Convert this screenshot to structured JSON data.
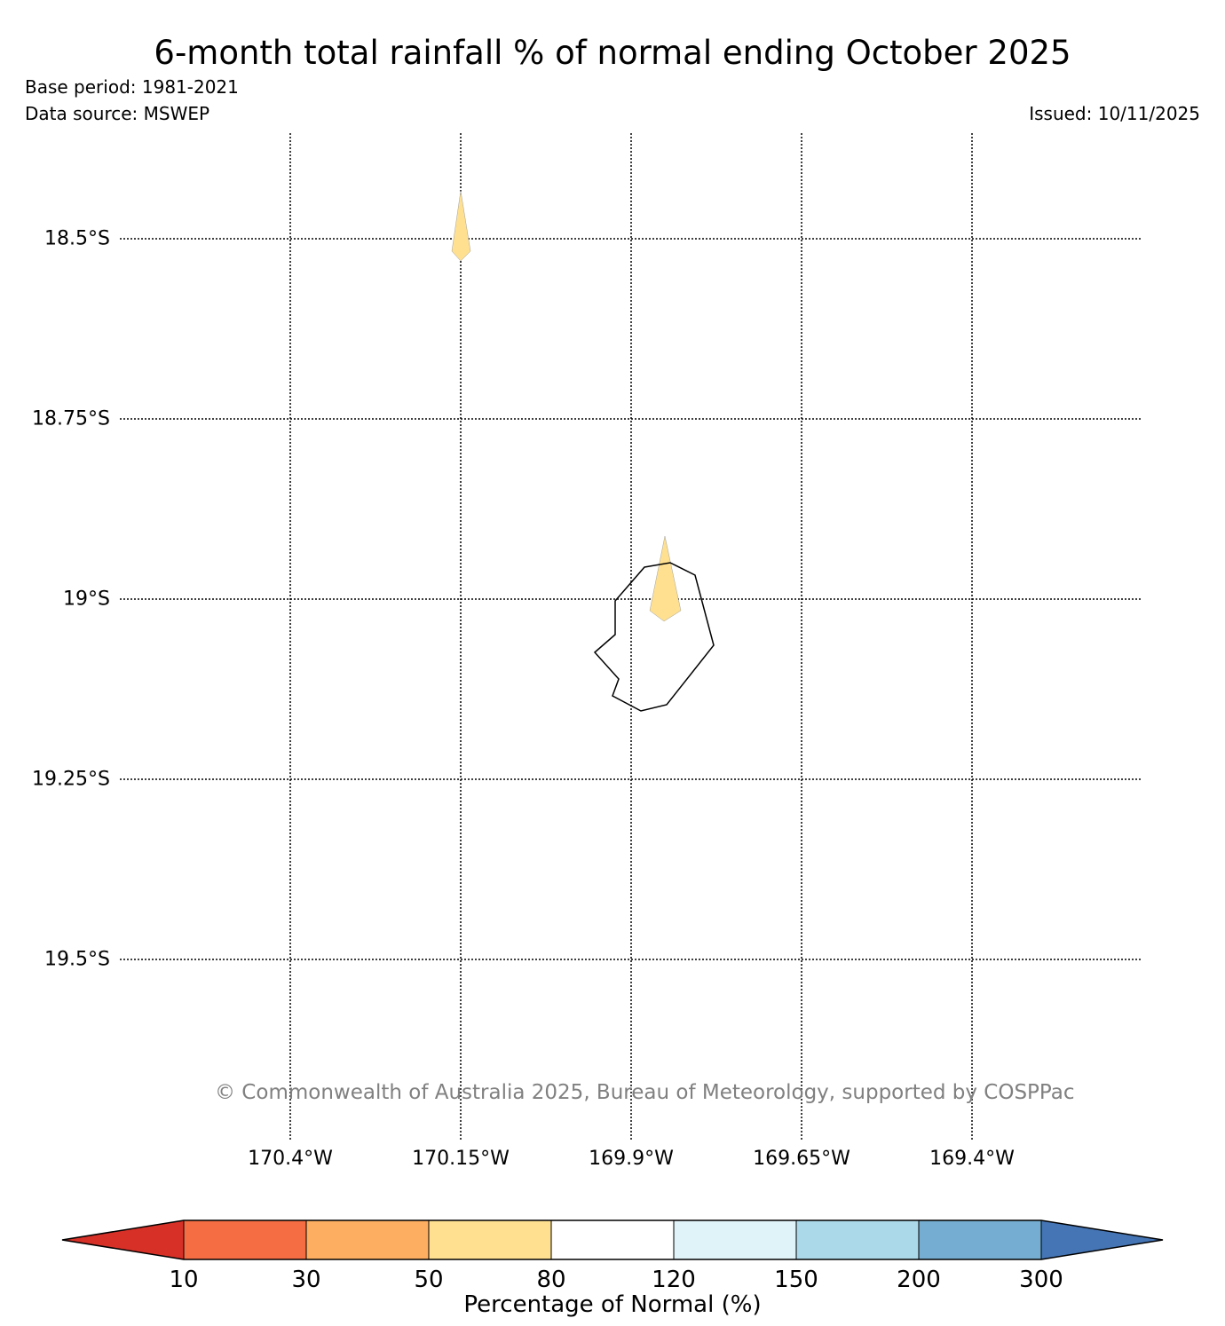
{
  "header": {
    "title": "6-month total rainfall % of normal ending October 2025",
    "base_period": "Base period: 1981-2021",
    "data_source": "Data source: MSWEP",
    "issued": "Issued: 10/11/2025"
  },
  "map": {
    "lat_labels": [
      "18.5°S",
      "18.75°S",
      "19°S",
      "19.25°S",
      "19.5°S"
    ],
    "lon_labels": [
      "170.4°W",
      "170.15°W",
      "169.9°W",
      "169.65°W",
      "169.4°W"
    ],
    "feature": "Niue island coastline",
    "shaded_category": "50-80",
    "copyright": "© Commonwealth of Australia 2025, Bureau of Meteorology, supported by COSPPac"
  },
  "colorbar": {
    "ticks": [
      "10",
      "30",
      "50",
      "80",
      "120",
      "150",
      "200",
      "300"
    ],
    "colors": [
      "#d73027",
      "#f46d43",
      "#fdae61",
      "#fee090",
      "#ffffff",
      "#e0f3f8",
      "#abd9e9",
      "#74add1",
      "#4575b4"
    ],
    "label": "Percentage of Normal (%)"
  }
}
